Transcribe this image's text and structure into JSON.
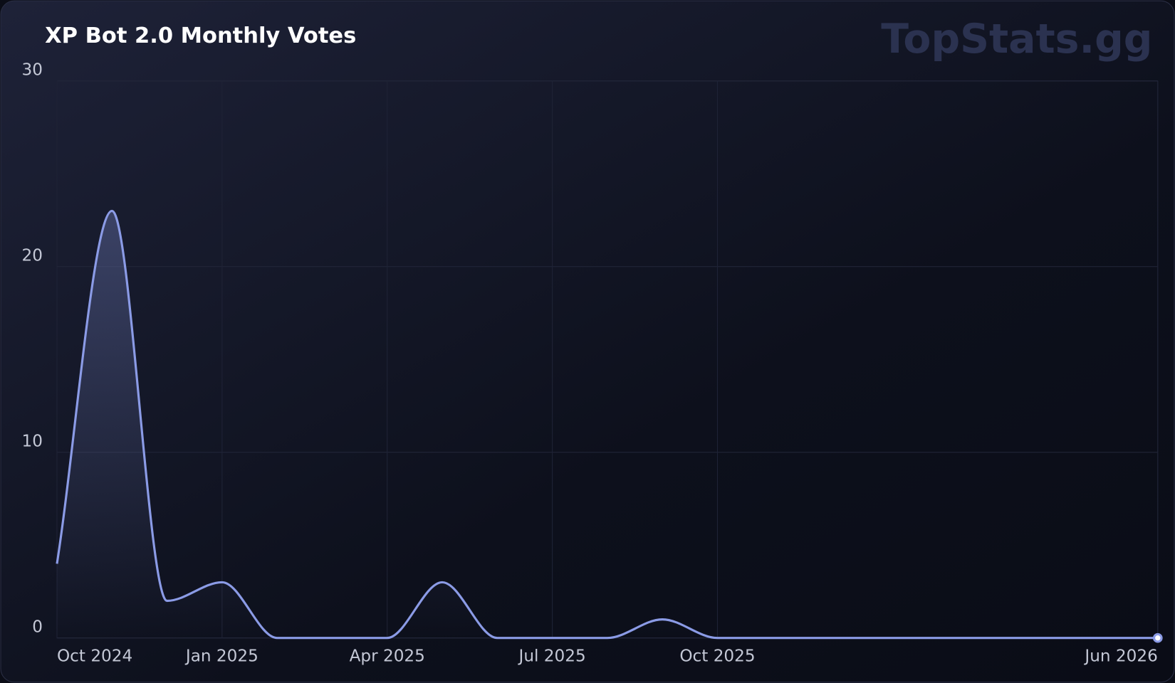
{
  "chart_data": {
    "type": "line",
    "title": "XP Bot 2.0 Monthly Votes",
    "watermark": "TopStats.gg",
    "x": [
      "2024-10",
      "2024-11",
      "2024-12",
      "2025-01",
      "2025-02",
      "2025-03",
      "2025-04",
      "2025-05",
      "2025-06",
      "2025-07",
      "2025-08",
      "2025-09",
      "2025-10",
      "2025-11",
      "2025-12",
      "2026-01",
      "2026-02",
      "2026-03",
      "2026-04",
      "2026-05",
      "2026-06"
    ],
    "series": [
      {
        "name": "Votes",
        "color": "#8b9be6",
        "values": [
          4,
          23,
          2,
          3,
          0,
          0,
          0,
          3,
          0,
          0,
          0,
          1,
          0,
          0,
          0,
          0,
          0,
          0,
          0,
          0,
          0
        ]
      }
    ],
    "ylim": [
      0,
      30
    ],
    "yticks": [
      0,
      10,
      20,
      30
    ],
    "xticks": [
      {
        "value": "2024-10",
        "label": "Oct 2024"
      },
      {
        "value": "2025-01",
        "label": "Jan 2025"
      },
      {
        "value": "2025-04",
        "label": "Apr 2025"
      },
      {
        "value": "2025-07",
        "label": "Jul 2025"
      },
      {
        "value": "2025-10",
        "label": "Oct 2025"
      },
      {
        "value": "2026-06",
        "label": "Jun 2026"
      }
    ],
    "grid": true
  }
}
